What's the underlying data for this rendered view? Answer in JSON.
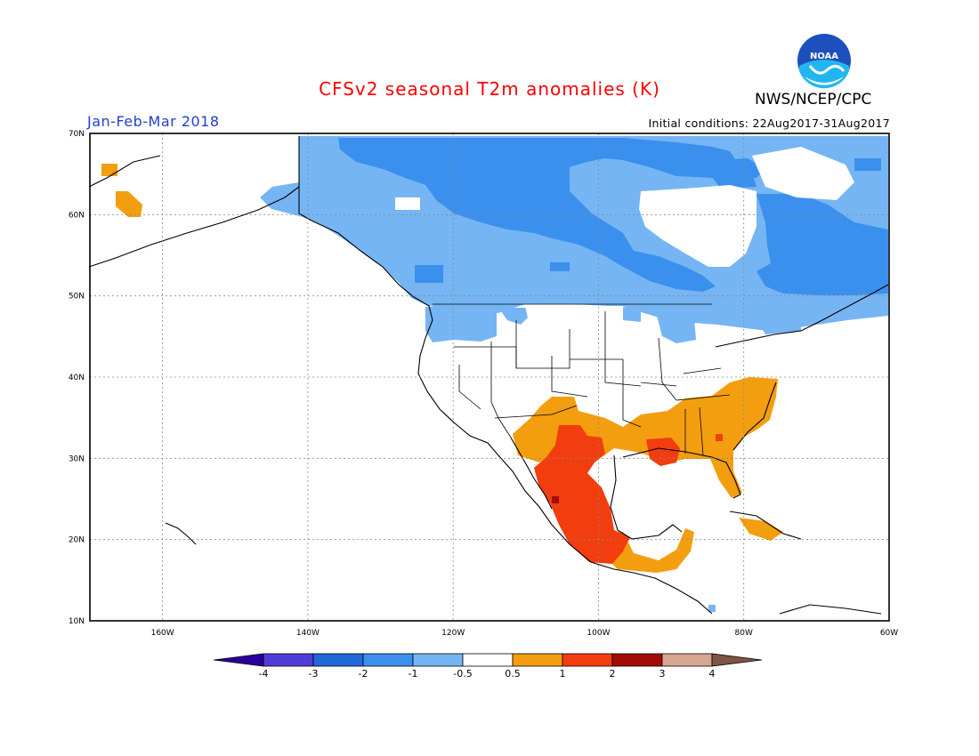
{
  "header": {
    "title": "CFSv2 seasonal T2m anomalies (K)",
    "agency": "NWS/NCEP/CPC",
    "logo_text": "NOAA",
    "period": "Jan-Feb-Mar 2018",
    "initial_conditions": "Initial conditions: 22Aug2017-31Aug2017"
  },
  "map": {
    "lat_labels": [
      "10N",
      "20N",
      "30N",
      "40N",
      "50N",
      "60N",
      "70N"
    ],
    "lon_labels": [
      "160W",
      "140W",
      "120W",
      "100W",
      "80W",
      "60W"
    ],
    "lat_range": [
      10,
      70
    ],
    "lon_range": [
      -170,
      -60
    ],
    "grid": true
  },
  "legend": {
    "labels": [
      "-4",
      "-3",
      "-2",
      "-1",
      "-0.5",
      "0.5",
      "1",
      "2",
      "3",
      "4"
    ],
    "colors": [
      "#2a009b",
      "#4f3cd6",
      "#2068d8",
      "#3b90ee",
      "#76b5f4",
      "#ffffff",
      "#f39e0f",
      "#f23d0e",
      "#a30c06",
      "#d6a691",
      "#7d5445"
    ]
  },
  "colors": {
    "title": "#ff0000",
    "period": "#2040d0",
    "logo_blue": "#1e4fbe",
    "logo_sky": "#22b6f0"
  }
}
